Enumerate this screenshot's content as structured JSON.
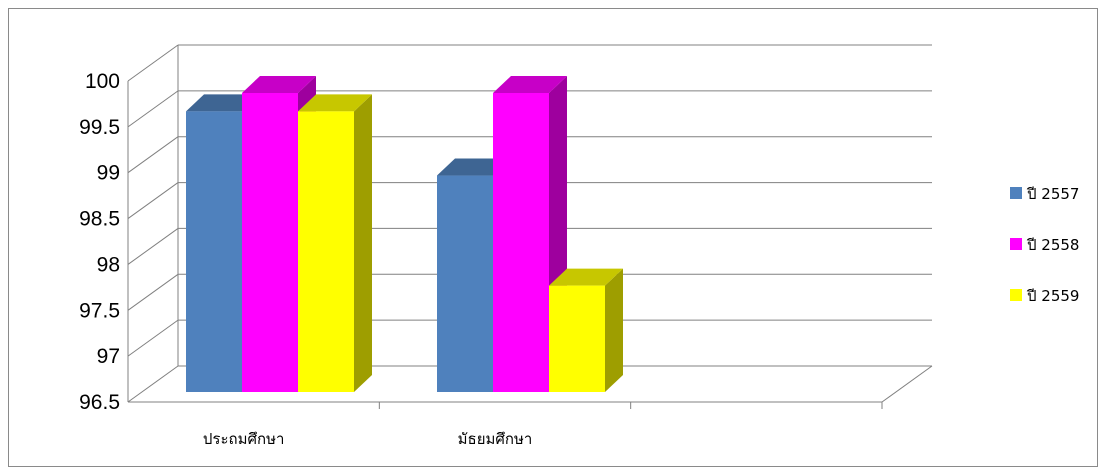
{
  "chart_data": {
    "type": "bar",
    "title": "",
    "xlabel": "",
    "ylabel": "",
    "categories": [
      "ประถมศึกษา",
      "มัธยมศึกษา"
    ],
    "series": [
      {
        "name": "ปี 2557",
        "values": [
          99.8,
          99.1
        ],
        "color": "#4F81BD"
      },
      {
        "name": "ปี  2558",
        "values": [
          100,
          100
        ],
        "color": "#FF00FF"
      },
      {
        "name": "ปี 2559",
        "values": [
          99.8,
          97.9
        ],
        "color": "#FFFF00"
      }
    ],
    "ylim": [
      96.5,
      100
    ],
    "yticks": [
      "96.5",
      "97",
      "97.5",
      "98",
      "98.5",
      "99",
      "99.5",
      "100"
    ],
    "grid": true,
    "legend_position": "right",
    "style": "3d-clustered-column"
  }
}
